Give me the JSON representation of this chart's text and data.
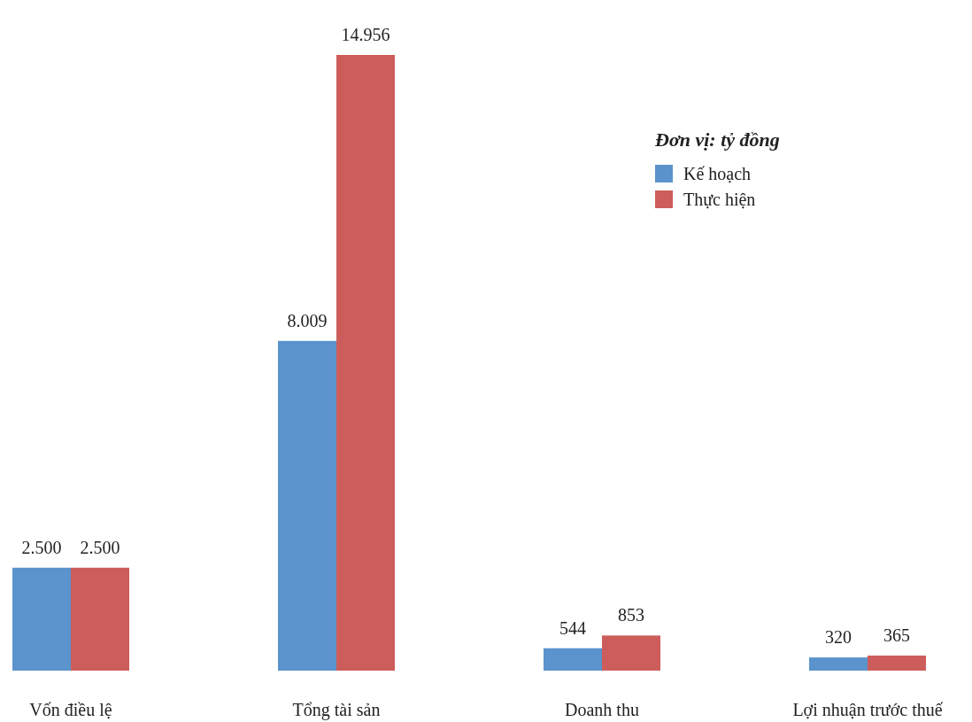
{
  "chart_data": {
    "type": "bar",
    "legend_title": "Đơn vị: tỷ đồng",
    "categories": [
      "Vốn điều lệ",
      "Tổng tài sản",
      "Doanh thu",
      "Lợi nhuận trước thuế"
    ],
    "series": [
      {
        "name": "Kế hoạch",
        "color": "#5b93cd",
        "values": [
          2500,
          8009,
          544,
          320
        ],
        "value_labels": [
          "2.500",
          "8.009",
          "544",
          "320"
        ]
      },
      {
        "name": "Thực hiện",
        "color": "#cd5d5b",
        "values": [
          2500,
          14956,
          853,
          365
        ],
        "value_labels": [
          "2.500",
          "14.956",
          "853",
          "365"
        ]
      }
    ],
    "legend": "top right"
  }
}
